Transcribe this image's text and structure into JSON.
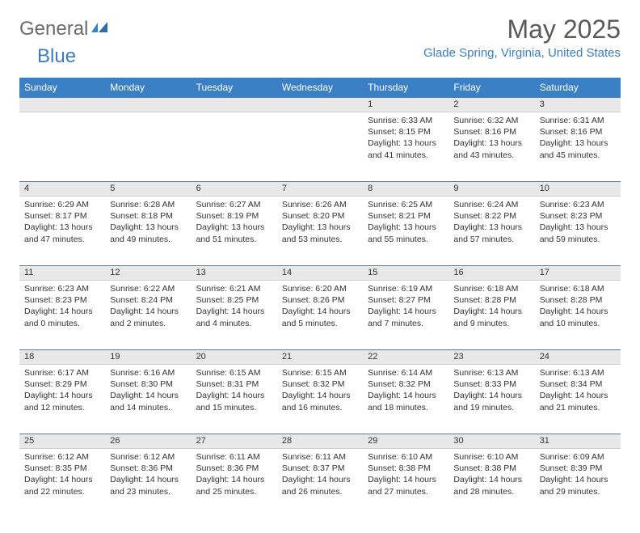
{
  "brand": {
    "general": "General",
    "blue": "Blue"
  },
  "title": "May 2025",
  "location": "Glade Spring, Virginia, United States",
  "colors": {
    "header_bg": "#3a7fc4",
    "header_text": "#ffffff",
    "daynum_bg": "#e8e8e8",
    "text": "#333333",
    "title_color": "#595959",
    "location_color": "#3a7fc4"
  },
  "dayHeaders": [
    "Sunday",
    "Monday",
    "Tuesday",
    "Wednesday",
    "Thursday",
    "Friday",
    "Saturday"
  ],
  "weeks": [
    [
      null,
      null,
      null,
      null,
      {
        "n": "1",
        "sr": "6:33 AM",
        "ss": "8:15 PM",
        "dl": "13 hours and 41 minutes."
      },
      {
        "n": "2",
        "sr": "6:32 AM",
        "ss": "8:16 PM",
        "dl": "13 hours and 43 minutes."
      },
      {
        "n": "3",
        "sr": "6:31 AM",
        "ss": "8:16 PM",
        "dl": "13 hours and 45 minutes."
      }
    ],
    [
      {
        "n": "4",
        "sr": "6:29 AM",
        "ss": "8:17 PM",
        "dl": "13 hours and 47 minutes."
      },
      {
        "n": "5",
        "sr": "6:28 AM",
        "ss": "8:18 PM",
        "dl": "13 hours and 49 minutes."
      },
      {
        "n": "6",
        "sr": "6:27 AM",
        "ss": "8:19 PM",
        "dl": "13 hours and 51 minutes."
      },
      {
        "n": "7",
        "sr": "6:26 AM",
        "ss": "8:20 PM",
        "dl": "13 hours and 53 minutes."
      },
      {
        "n": "8",
        "sr": "6:25 AM",
        "ss": "8:21 PM",
        "dl": "13 hours and 55 minutes."
      },
      {
        "n": "9",
        "sr": "6:24 AM",
        "ss": "8:22 PM",
        "dl": "13 hours and 57 minutes."
      },
      {
        "n": "10",
        "sr": "6:23 AM",
        "ss": "8:23 PM",
        "dl": "13 hours and 59 minutes."
      }
    ],
    [
      {
        "n": "11",
        "sr": "6:23 AM",
        "ss": "8:23 PM",
        "dl": "14 hours and 0 minutes."
      },
      {
        "n": "12",
        "sr": "6:22 AM",
        "ss": "8:24 PM",
        "dl": "14 hours and 2 minutes."
      },
      {
        "n": "13",
        "sr": "6:21 AM",
        "ss": "8:25 PM",
        "dl": "14 hours and 4 minutes."
      },
      {
        "n": "14",
        "sr": "6:20 AM",
        "ss": "8:26 PM",
        "dl": "14 hours and 5 minutes."
      },
      {
        "n": "15",
        "sr": "6:19 AM",
        "ss": "8:27 PM",
        "dl": "14 hours and 7 minutes."
      },
      {
        "n": "16",
        "sr": "6:18 AM",
        "ss": "8:28 PM",
        "dl": "14 hours and 9 minutes."
      },
      {
        "n": "17",
        "sr": "6:18 AM",
        "ss": "8:28 PM",
        "dl": "14 hours and 10 minutes."
      }
    ],
    [
      {
        "n": "18",
        "sr": "6:17 AM",
        "ss": "8:29 PM",
        "dl": "14 hours and 12 minutes."
      },
      {
        "n": "19",
        "sr": "6:16 AM",
        "ss": "8:30 PM",
        "dl": "14 hours and 14 minutes."
      },
      {
        "n": "20",
        "sr": "6:15 AM",
        "ss": "8:31 PM",
        "dl": "14 hours and 15 minutes."
      },
      {
        "n": "21",
        "sr": "6:15 AM",
        "ss": "8:32 PM",
        "dl": "14 hours and 16 minutes."
      },
      {
        "n": "22",
        "sr": "6:14 AM",
        "ss": "8:32 PM",
        "dl": "14 hours and 18 minutes."
      },
      {
        "n": "23",
        "sr": "6:13 AM",
        "ss": "8:33 PM",
        "dl": "14 hours and 19 minutes."
      },
      {
        "n": "24",
        "sr": "6:13 AM",
        "ss": "8:34 PM",
        "dl": "14 hours and 21 minutes."
      }
    ],
    [
      {
        "n": "25",
        "sr": "6:12 AM",
        "ss": "8:35 PM",
        "dl": "14 hours and 22 minutes."
      },
      {
        "n": "26",
        "sr": "6:12 AM",
        "ss": "8:36 PM",
        "dl": "14 hours and 23 minutes."
      },
      {
        "n": "27",
        "sr": "6:11 AM",
        "ss": "8:36 PM",
        "dl": "14 hours and 25 minutes."
      },
      {
        "n": "28",
        "sr": "6:11 AM",
        "ss": "8:37 PM",
        "dl": "14 hours and 26 minutes."
      },
      {
        "n": "29",
        "sr": "6:10 AM",
        "ss": "8:38 PM",
        "dl": "14 hours and 27 minutes."
      },
      {
        "n": "30",
        "sr": "6:10 AM",
        "ss": "8:38 PM",
        "dl": "14 hours and 28 minutes."
      },
      {
        "n": "31",
        "sr": "6:09 AM",
        "ss": "8:39 PM",
        "dl": "14 hours and 29 minutes."
      }
    ]
  ],
  "labels": {
    "sunrise": "Sunrise:",
    "sunset": "Sunset:",
    "daylight": "Daylight:"
  }
}
